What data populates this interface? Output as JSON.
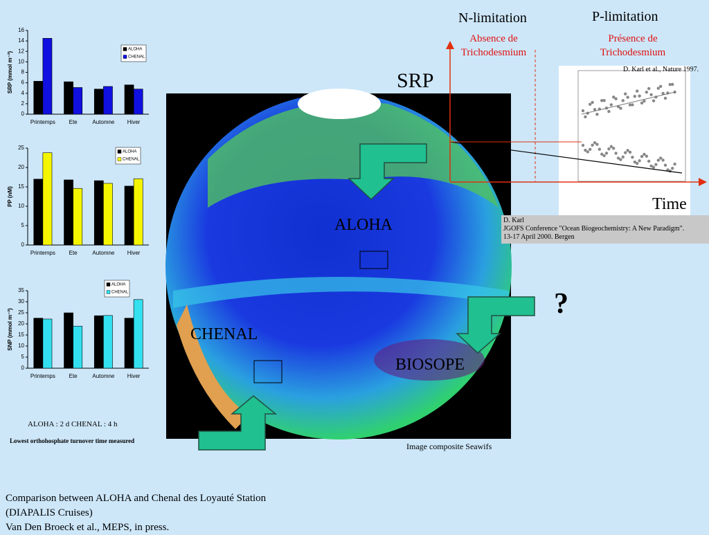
{
  "chart_data": [
    {
      "type": "bar",
      "y_label": "SRP (mmol m⁻²)",
      "categories": [
        "Printemps",
        "Ete",
        "Automne",
        "Hiver"
      ],
      "series": [
        {
          "name": "ALOHA",
          "color": "#000000",
          "values": [
            6.3,
            6.2,
            4.8,
            5.6
          ]
        },
        {
          "name": "CHENAL",
          "color": "#1010e0",
          "values": [
            14.5,
            5.1,
            5.3,
            4.8
          ]
        }
      ],
      "ylim": [
        0,
        16
      ],
      "yticks": [
        0,
        2,
        4,
        6,
        8,
        10,
        12,
        14,
        16
      ]
    },
    {
      "type": "bar",
      "y_label": "PP (nM)",
      "categories": [
        "Printemps",
        "Ete",
        "Automne",
        "Hiver"
      ],
      "series": [
        {
          "name": "ALOHA",
          "color": "#000000",
          "values": [
            17,
            16.8,
            16.6,
            15.2
          ]
        },
        {
          "name": "CHENAL",
          "color": "#f5f500",
          "values": [
            23.8,
            14.6,
            15.9,
            17.1
          ]
        }
      ],
      "ylim": [
        0,
        25
      ],
      "yticks": [
        0,
        5,
        10,
        15,
        20,
        25
      ]
    },
    {
      "type": "bar",
      "y_label": "SNP (mmol m⁻²)",
      "categories": [
        "Printemps",
        "Ete",
        "Automne",
        "Hiver"
      ],
      "series": [
        {
          "name": "ALOHA",
          "color": "#000000",
          "values": [
            22.6,
            25,
            23.7,
            22.6
          ]
        },
        {
          "name": "CHENAL",
          "color": "#33e0f0",
          "values": [
            22.2,
            19,
            23.8,
            31
          ]
        }
      ],
      "ylim": [
        0,
        35
      ],
      "yticks": [
        0,
        5,
        10,
        15,
        20,
        25,
        30,
        35
      ]
    }
  ],
  "slide": {
    "n_limitation": "N-limitation",
    "n_note": [
      "Absence de",
      "Trichodesmium"
    ],
    "p_limitation": "P-limitation",
    "p_note": [
      "Présence de",
      "Trichodesmium"
    ],
    "karl_ref": "D. Karl et al., Nature 1997.",
    "srp": "SRP",
    "time": "Time",
    "conference": [
      "D. Karl",
      "JGOFS Conference \"Ocean Biogeochemistry: A New Paradigm\".",
      "13-17 April 2000. Bergen"
    ],
    "aloha": "ALOHA",
    "chenal": "CHENAL",
    "biosope": "BIOSOPE",
    "question": "?",
    "image_caption": "Image composite Seawifs",
    "turnover": "ALOHA : 2 d  CHENAL : 4 h",
    "turnover_note": "Lowest orthohosphate turnover time measured",
    "footer": [
      "Comparison between ALOHA and Chenal des Loyauté Station",
      "(DIAPALIS Cruises)",
      "Van Den Broeck et al., MEPS, in press."
    ]
  }
}
